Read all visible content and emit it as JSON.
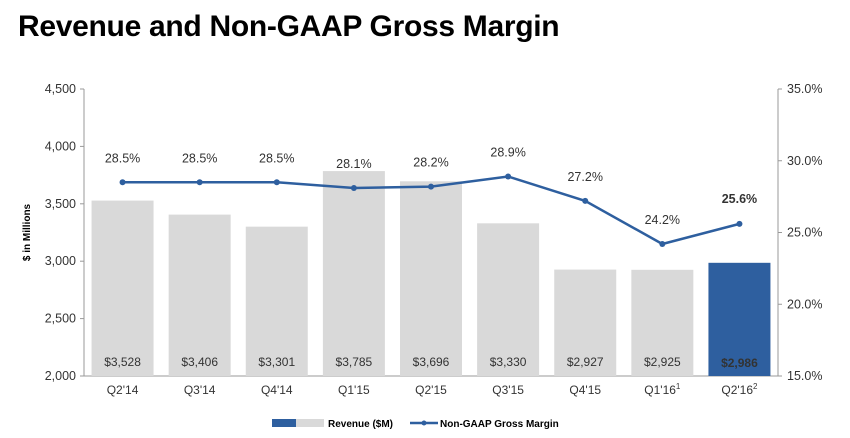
{
  "title": "Revenue and Non-GAAP Gross Margin",
  "chart_data": {
    "type": "bar",
    "categories": [
      "Q2'14",
      "Q3'14",
      "Q4'14",
      "Q1'15",
      "Q2'15",
      "Q3'15",
      "Q4'15",
      "Q1'16",
      "Q2'16"
    ],
    "category_superscripts": [
      "",
      "",
      "",
      "",
      "",
      "",
      "",
      "1",
      "2"
    ],
    "ylabel": "$ in Millions",
    "ylim": [
      2000,
      4500
    ],
    "yticks": [
      "2,000",
      "2,500",
      "3,000",
      "3,500",
      "4,000",
      "4,500"
    ],
    "y2lim": [
      15.0,
      35.0
    ],
    "y2ticks": [
      "15.0%",
      "20.0%",
      "25.0%",
      "30.0%",
      "35.0%"
    ],
    "grid": false,
    "legend_position": "bottom-center",
    "series": [
      {
        "name": "Revenue ($M)",
        "type": "bar",
        "axis": "left",
        "values": [
          3528,
          3406,
          3301,
          3785,
          3696,
          3330,
          2927,
          2925,
          2986
        ],
        "labels": [
          "$3,528",
          "$3,406",
          "$3,301",
          "$3,785",
          "$3,696",
          "$3,330",
          "$2,927",
          "$2,925",
          "$2,986"
        ],
        "color": "#d9d9d9",
        "highlight_index": 8,
        "highlight_color": "#2e5f9f"
      },
      {
        "name": "Non-GAAP Gross Margin",
        "type": "line",
        "axis": "right",
        "values": [
          28.5,
          28.5,
          28.5,
          28.1,
          28.2,
          28.9,
          27.2,
          24.2,
          25.6
        ],
        "labels": [
          "28.5%",
          "28.5%",
          "28.5%",
          "28.1%",
          "28.2%",
          "28.9%",
          "27.2%",
          "24.2%",
          "25.6%"
        ],
        "color": "#2e5f9f"
      }
    ]
  }
}
